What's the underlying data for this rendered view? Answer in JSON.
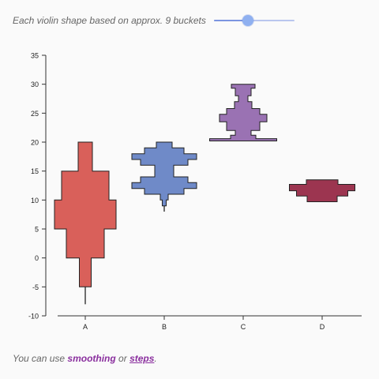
{
  "controls": {
    "bucket_caption": "Each violin shape based on approx. 9 buckets",
    "bucket_slider": {
      "min": 1,
      "max": 20,
      "value": 9
    }
  },
  "footer": {
    "prefix": "You can use ",
    "smoothing_link": "smoothing",
    "middle": " or ",
    "steps_link": "steps",
    "suffix": "."
  },
  "colors": {
    "A": "#d9605a",
    "B": "#6f8ac8",
    "C": "#9a72b3",
    "D": "#9c3550"
  },
  "chart_data": {
    "type": "violin",
    "style": "steps",
    "categories": [
      "A",
      "B",
      "C",
      "D"
    ],
    "ylim": [
      -10,
      35
    ],
    "yticks": [
      "35",
      "30",
      "25",
      "20",
      "15",
      "10",
      "5",
      "0",
      "-5",
      "-10"
    ],
    "violins": [
      {
        "category": "A",
        "whisker": [
          -8,
          -5
        ],
        "profile": [
          {
            "y": -5,
            "w": 0.15
          },
          {
            "y": 0,
            "w": 0.15
          },
          {
            "y": 0,
            "w": 0.48
          },
          {
            "y": 5,
            "w": 0.48
          },
          {
            "y": 5,
            "w": 0.78
          },
          {
            "y": 10,
            "w": 0.78
          },
          {
            "y": 10,
            "w": 0.6
          },
          {
            "y": 15,
            "w": 0.6
          },
          {
            "y": 15,
            "w": 0.18
          },
          {
            "y": 20,
            "w": 0.18
          }
        ]
      },
      {
        "category": "B",
        "whisker": [
          8,
          9
        ],
        "profile": [
          {
            "y": 9,
            "w": 0.05
          },
          {
            "y": 10,
            "w": 0.05
          },
          {
            "y": 10,
            "w": 0.1
          },
          {
            "y": 11,
            "w": 0.1
          },
          {
            "y": 11,
            "w": 0.5
          },
          {
            "y": 12,
            "w": 0.5
          },
          {
            "y": 12,
            "w": 0.82
          },
          {
            "y": 13,
            "w": 0.82
          },
          {
            "y": 13,
            "w": 0.6
          },
          {
            "y": 14,
            "w": 0.6
          },
          {
            "y": 14,
            "w": 0.24
          },
          {
            "y": 16,
            "w": 0.24
          },
          {
            "y": 16,
            "w": 0.6
          },
          {
            "y": 17,
            "w": 0.6
          },
          {
            "y": 17,
            "w": 0.82
          },
          {
            "y": 18,
            "w": 0.82
          },
          {
            "y": 18,
            "w": 0.5
          },
          {
            "y": 19,
            "w": 0.5
          },
          {
            "y": 19,
            "w": 0.2
          },
          {
            "y": 20,
            "w": 0.2
          }
        ]
      },
      {
        "category": "C",
        "whisker": null,
        "profile": [
          {
            "y": 20.2,
            "w": 0.85
          },
          {
            "y": 20.6,
            "w": 0.85
          },
          {
            "y": 20.6,
            "w": 0.32
          },
          {
            "y": 21.2,
            "w": 0.32
          },
          {
            "y": 21.2,
            "w": 0.2
          },
          {
            "y": 22,
            "w": 0.2
          },
          {
            "y": 22,
            "w": 0.42
          },
          {
            "y": 23.5,
            "w": 0.42
          },
          {
            "y": 23.5,
            "w": 0.6
          },
          {
            "y": 24.8,
            "w": 0.6
          },
          {
            "y": 24.8,
            "w": 0.42
          },
          {
            "y": 25.8,
            "w": 0.42
          },
          {
            "y": 25.8,
            "w": 0.22
          },
          {
            "y": 27,
            "w": 0.22
          },
          {
            "y": 27,
            "w": 0.12
          },
          {
            "y": 28,
            "w": 0.12
          },
          {
            "y": 28,
            "w": 0.2
          },
          {
            "y": 29.3,
            "w": 0.2
          },
          {
            "y": 29.3,
            "w": 0.3
          },
          {
            "y": 30,
            "w": 0.3
          }
        ]
      },
      {
        "category": "D",
        "whisker": null,
        "profile": [
          {
            "y": 9.7,
            "w": 0.38
          },
          {
            "y": 10.7,
            "w": 0.38
          },
          {
            "y": 10.7,
            "w": 0.65
          },
          {
            "y": 11.6,
            "w": 0.65
          },
          {
            "y": 11.6,
            "w": 0.83
          },
          {
            "y": 12.7,
            "w": 0.83
          },
          {
            "y": 12.7,
            "w": 0.4
          },
          {
            "y": 13.5,
            "w": 0.4
          }
        ]
      }
    ]
  }
}
